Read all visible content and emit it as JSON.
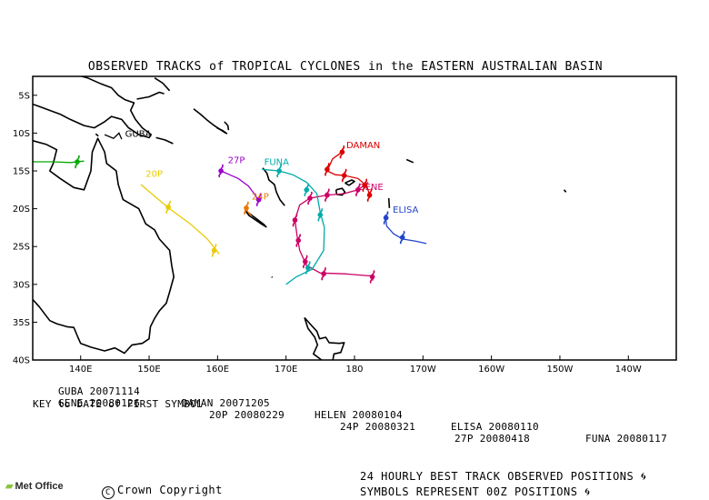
{
  "title": "OBSERVED TRACKS of TROPICAL CYCLONES in the EASTERN AUSTRALIAN BASIN",
  "map": {
    "lon_range": [
      133,
      227
    ],
    "lat_range": [
      -40,
      -2.5
    ],
    "lat_ticks": [
      {
        "lat": -5,
        "label": "5S"
      },
      {
        "lat": -10,
        "label": "10S"
      },
      {
        "lat": -15,
        "label": "15S"
      },
      {
        "lat": -20,
        "label": "20S"
      },
      {
        "lat": -25,
        "label": "25S"
      },
      {
        "lat": -30,
        "label": "30S"
      },
      {
        "lat": -35,
        "label": "35S"
      },
      {
        "lat": -40,
        "label": "40S"
      }
    ],
    "lon_ticks": [
      {
        "lon": 140,
        "label": "140E"
      },
      {
        "lon": 150,
        "label": "150E"
      },
      {
        "lon": 160,
        "label": "160E"
      },
      {
        "lon": 170,
        "label": "170E"
      },
      {
        "lon": 180,
        "label": "180"
      },
      {
        "lon": 190,
        "label": "170W"
      },
      {
        "lon": 200,
        "label": "160W"
      },
      {
        "lon": 210,
        "label": "150W"
      },
      {
        "lon": 220,
        "label": "140W"
      }
    ]
  },
  "tracks": [
    {
      "name": "GUBA",
      "label": "GUBA",
      "color": "#000000",
      "label_at": [
        146.5,
        -10.5
      ],
      "points": [
        [
          143.5,
          -10.2
        ],
        [
          144.8,
          -10.7
        ],
        [
          145.6,
          -10.0
        ],
        [
          146.0,
          -10.8
        ]
      ]
    },
    {
      "name": "GENE",
      "label": "GENE",
      "color": "#cc0066",
      "label_at": [
        180.5,
        -17.5
      ],
      "points": [
        [
          182.0,
          -16.5
        ],
        [
          180.5,
          -17.5
        ],
        [
          178.5,
          -18.0
        ],
        [
          176.0,
          -18.2
        ],
        [
          173.5,
          -18.6
        ],
        [
          172.0,
          -19.5
        ],
        [
          171.3,
          -21.5
        ],
        [
          171.6,
          -23.5
        ],
        [
          172.0,
          -25.5
        ],
        [
          173.0,
          -27.5
        ],
        [
          175.0,
          -28.5
        ],
        [
          178.5,
          -28.6
        ],
        [
          182.5,
          -28.9
        ],
        [
          182.7,
          -29.5
        ]
      ],
      "markers": [
        [
          180.5,
          -17.5
        ],
        [
          176.0,
          -18.2
        ],
        [
          173.5,
          -18.6
        ],
        [
          171.3,
          -21.5
        ],
        [
          171.8,
          -24.2
        ],
        [
          172.8,
          -27.0
        ],
        [
          175.5,
          -28.6
        ],
        [
          182.6,
          -29.0
        ]
      ]
    },
    {
      "name": "DAMAN",
      "label": "DAMAN",
      "color": "#dd0000",
      "label_at": [
        178.8,
        -12.0
      ],
      "points": [
        [
          178.2,
          -12.5
        ],
        [
          176.8,
          -13.4
        ],
        [
          176.0,
          -15.0
        ],
        [
          177.2,
          -15.5
        ],
        [
          178.5,
          -15.6
        ],
        [
          180.5,
          -16.0
        ],
        [
          181.8,
          -17.0
        ],
        [
          182.3,
          -18.5
        ]
      ],
      "markers": [
        [
          178.2,
          -12.5
        ],
        [
          176.0,
          -14.8
        ],
        [
          178.5,
          -15.6
        ],
        [
          181.5,
          -16.9
        ],
        [
          182.2,
          -18.2
        ]
      ]
    },
    {
      "name": "FUNA",
      "label": "FUNA",
      "color": "#00aaaa",
      "label_at": [
        166.8,
        -14.2
      ],
      "points": [
        [
          166.5,
          -14.8
        ],
        [
          169.0,
          -15.0
        ],
        [
          171.0,
          -15.5
        ],
        [
          173.0,
          -16.5
        ],
        [
          174.5,
          -18.0
        ],
        [
          175.0,
          -20.5
        ],
        [
          175.6,
          -22.5
        ],
        [
          175.5,
          -25.5
        ],
        [
          173.8,
          -28.0
        ],
        [
          171.5,
          -29.0
        ],
        [
          170.0,
          -30.0
        ]
      ],
      "markers": [
        [
          169.0,
          -15.0
        ],
        [
          173.0,
          -17.5
        ],
        [
          175.0,
          -20.8
        ],
        [
          173.2,
          -27.8
        ]
      ]
    },
    {
      "name": "ELISA",
      "label": "ELISA",
      "color": "#2244cc",
      "label_at": [
        185.6,
        -20.5
      ],
      "points": [
        [
          184.5,
          -20.8
        ],
        [
          184.7,
          -22.3
        ],
        [
          185.7,
          -23.3
        ],
        [
          187.0,
          -24.0
        ],
        [
          189.0,
          -24.3
        ],
        [
          190.5,
          -24.6
        ]
      ],
      "markers": [
        [
          184.6,
          -21.2
        ],
        [
          187.0,
          -23.8
        ]
      ]
    },
    {
      "name": "27P",
      "label": "27P",
      "color": "#9900cc",
      "label_at": [
        161.5,
        -14.0
      ],
      "points": [
        [
          160.5,
          -15.0
        ],
        [
          163.0,
          -16.0
        ],
        [
          164.5,
          -17.0
        ],
        [
          165.5,
          -18.2
        ],
        [
          166.0,
          -19.0
        ]
      ],
      "markers": [
        [
          160.5,
          -15.0
        ],
        [
          166.0,
          -18.8
        ]
      ]
    },
    {
      "name": "24P",
      "label": "24P",
      "color": "#ee7700",
      "label_at": [
        165.0,
        -18.8
      ],
      "points": [
        [
          164.0,
          -19.8
        ],
        [
          164.5,
          -20.5
        ],
        [
          165.0,
          -21.0
        ]
      ],
      "markers": [
        [
          164.2,
          -19.9
        ]
      ]
    },
    {
      "name": "20P",
      "label": "20P",
      "color": "#e8cc00",
      "label_at": [
        149.5,
        -15.8
      ],
      "points": [
        [
          148.8,
          -16.8
        ],
        [
          151.0,
          -18.5
        ],
        [
          153.0,
          -20.0
        ],
        [
          156.0,
          -22.0
        ],
        [
          158.5,
          -24.0
        ],
        [
          160.0,
          -25.7
        ],
        [
          160.2,
          -26.0
        ]
      ],
      "markers": [
        [
          152.8,
          -19.8
        ],
        [
          159.5,
          -25.5
        ]
      ]
    },
    {
      "name": "HELEN",
      "label": "",
      "color": "#00aa00",
      "label_at": [
        0,
        0
      ],
      "points": [
        [
          131.5,
          -13.7
        ],
        [
          133.5,
          -13.8
        ],
        [
          136.0,
          -13.8
        ],
        [
          138.5,
          -13.9
        ],
        [
          140.5,
          -13.7
        ]
      ],
      "markers": [
        [
          139.5,
          -13.8
        ]
      ]
    }
  ],
  "key": {
    "rows": [
      [
        {
          "text": "GUBA 20071114"
        },
        {
          "text": "DAMAN 20071205"
        },
        {
          "text": "HELEN 20080104"
        },
        {
          "text": "ELISA 20080110"
        },
        {
          "text": "FUNA 20080117"
        }
      ],
      [
        {
          "text": "GENE 20080126"
        },
        {
          "text": "20P 20080229"
        },
        {
          "text": "24P 20080321"
        },
        {
          "text": "27P 20080418"
        }
      ]
    ],
    "note": "KEY to DATE of FIRST SYMBOL"
  },
  "footer": {
    "logo_text": "Met Office",
    "copyright": "Crown Copyright",
    "line1": "24 HOURLY BEST TRACK OBSERVED POSITIONS",
    "line2": "SYMBOLS REPRESENT 00Z POSITIONS"
  }
}
